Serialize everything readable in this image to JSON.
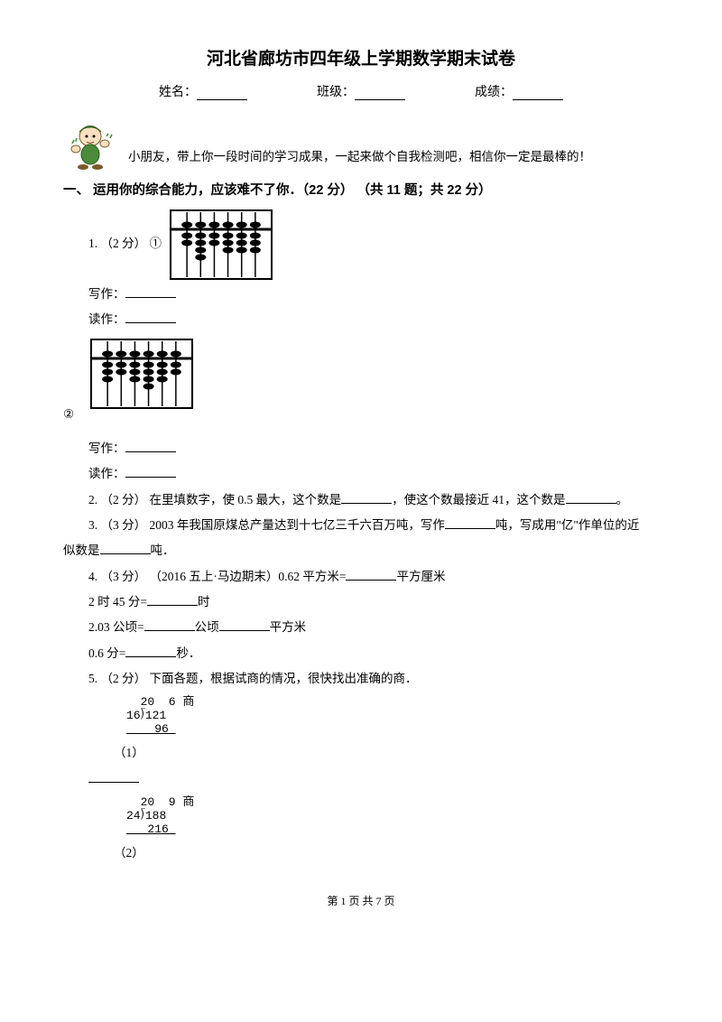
{
  "title": "河北省廊坊市四年级上学期数学期末试卷",
  "form": {
    "name_label": "姓名：",
    "class_label": "班级：",
    "score_label": "成绩："
  },
  "encourage": "小朋友，带上你一段时间的学习成果，一起来做个自我检测吧，相信你一定是最棒的！",
  "section1": "一、 运用你的综合能力，应该难不了你．（22 分） （共 11 题；共 22 分）",
  "q1": {
    "prefix": "1.  （2 分）  ①",
    "write": "写作：",
    "read": "读作：",
    "sub2": "②",
    "write2": "写作：",
    "read2": "读作："
  },
  "q2": {
    "text_a": "2.  （2 分）  在里填数字，使 0.5 最大，这个数是",
    "text_b": "，使这个数最接近 41，这个数是",
    "text_c": "。"
  },
  "q3": {
    "text_a": "3.  （3 分）  2003 年我国原煤总产量达到十七亿三千六百万吨，写作",
    "text_b": "吨，写成用\"亿\"作单位的近",
    "text_c": "似数是",
    "text_d": "吨．"
  },
  "q4": {
    "text_a": "4.  （3 分） （2016 五上·马边期末）0.62 平方米=",
    "text_b": "平方厘米",
    "line2_a": "2 时 45 分=",
    "line2_b": "时",
    "line3_a": "2.03 公顷=",
    "line3_b": "公顷",
    "line3_c": "平方米",
    "line4_a": "0.6 分=",
    "line4_b": "秒．"
  },
  "q5": {
    "text": "5.  （2 分）  下面各题，根据试商的情况，很快找出准确的商．",
    "d1": {
      "idx": "（1）",
      "l1": "  20  6 ",
      "l2": "16⟌121",
      "l3": "    96 ",
      "shang": "商"
    },
    "d2": {
      "idx": "（2）",
      "l1": "  20  9 ",
      "l2": "24⟌188",
      "l3": "   216 ",
      "shang": "商"
    }
  },
  "abacus": {
    "frame_color": "#000000",
    "bg_color": "#ffffff",
    "bead_color": "#000000",
    "rods": 6,
    "a1_upper": [
      1,
      1,
      1,
      1,
      1,
      1
    ],
    "a1_lower": [
      2,
      4,
      2,
      3,
      3,
      3
    ],
    "a2_upper": [
      1,
      1,
      1,
      1,
      1,
      1
    ],
    "a2_lower": [
      3,
      2,
      3,
      4,
      3,
      2
    ]
  },
  "footer": "第 1 页 共 7 页"
}
